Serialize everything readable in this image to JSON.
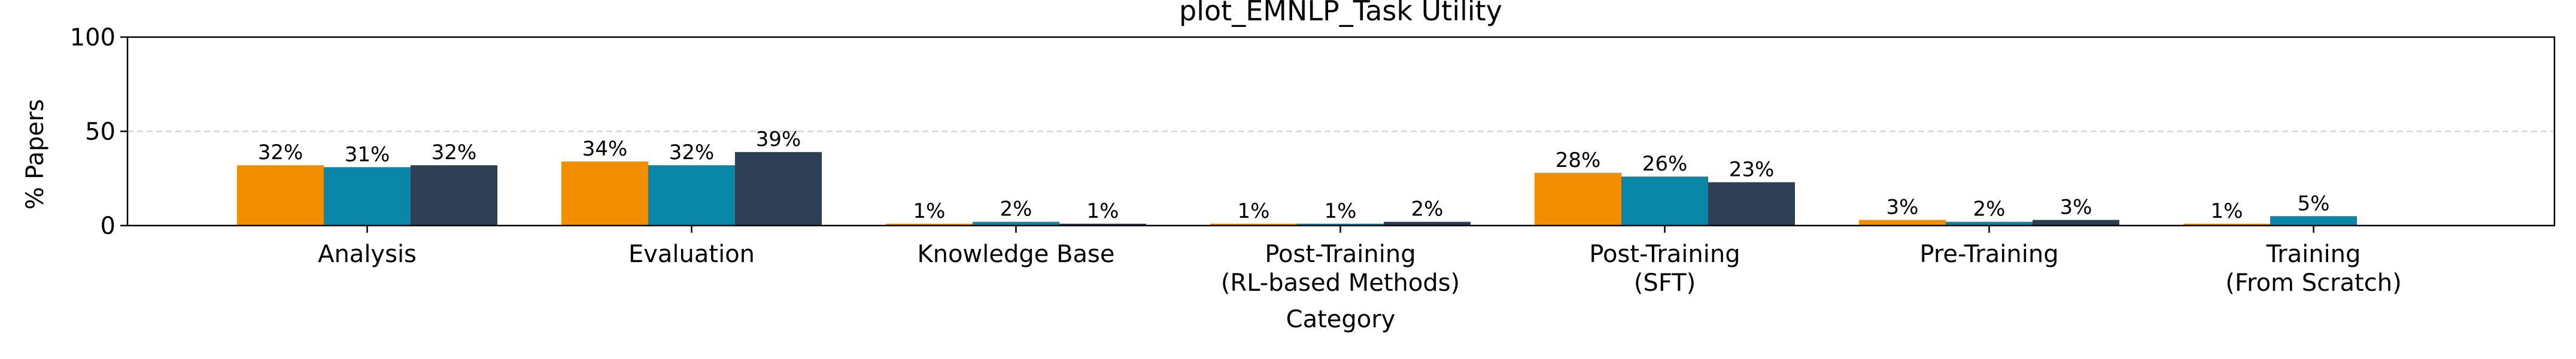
{
  "chart_data": {
    "type": "bar",
    "title": "plot_EMNLP_Task Utility",
    "xlabel": "Category",
    "ylabel": "% Papers",
    "ylim": [
      0,
      100
    ],
    "yticks": [
      "0",
      "50",
      "100"
    ],
    "grid": "horizontal dashed line at 50",
    "legend": "none",
    "categories": [
      [
        "Analysis"
      ],
      [
        "Evaluation"
      ],
      [
        "Knowledge Base"
      ],
      [
        "Post-Training",
        "(RL-based Methods)"
      ],
      [
        "Post-Training",
        "(SFT)"
      ],
      [
        "Pre-Training"
      ],
      [
        "Training",
        "(From Scratch)"
      ]
    ],
    "series": [
      {
        "color": "#F28E00",
        "values": [
          32,
          34,
          1,
          1,
          28,
          3,
          1
        ],
        "labels": [
          "32%",
          "34%",
          "1%",
          "1%",
          "28%",
          "3%",
          "1%"
        ]
      },
      {
        "color": "#0A86A8",
        "values": [
          31,
          32,
          2,
          1,
          26,
          2,
          5
        ],
        "labels": [
          "31%",
          "32%",
          "2%",
          "1%",
          "26%",
          "2%",
          "5%"
        ]
      },
      {
        "color": "#2D3E55",
        "values": [
          32,
          39,
          1,
          2,
          23,
          3,
          null
        ],
        "labels": [
          "32%",
          "39%",
          "1%",
          "2%",
          "23%",
          "3%",
          null
        ]
      }
    ]
  }
}
